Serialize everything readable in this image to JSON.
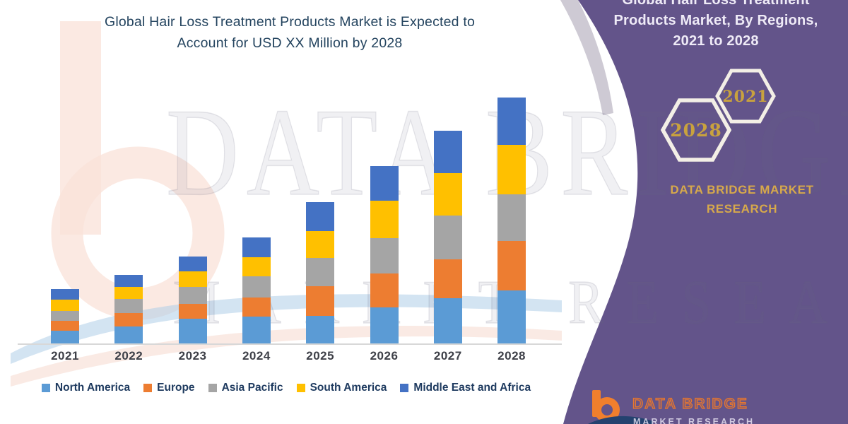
{
  "title": {
    "line1": "Global Hair Loss Treatment Products Market is Expected to",
    "line2": "Account for USD XX Million by 2028"
  },
  "watermark": {
    "line1": "DATA BRIDGE",
    "line2": "MARKET RESEARCH"
  },
  "chart_data": {
    "type": "bar",
    "stacked": true,
    "title": "Global Hair Loss Treatment Products Market is Expected to Account for USD XX Million by 2028",
    "xlabel": "",
    "ylabel": "",
    "y_axis_visible": false,
    "grid": false,
    "legend_position": "bottom",
    "categories": [
      "2021",
      "2022",
      "2023",
      "2024",
      "2025",
      "2026",
      "2027",
      "2028"
    ],
    "series": [
      {
        "name": "North America",
        "color": "#5B9BD5",
        "values": [
          18,
          24,
          35,
          38,
          39,
          51,
          64,
          75
        ]
      },
      {
        "name": "Europe",
        "color": "#ED7D31",
        "values": [
          14,
          19,
          21,
          27,
          42,
          48,
          55,
          70
        ]
      },
      {
        "name": "Asia Pacific",
        "color": "#A5A5A5",
        "values": [
          14,
          20,
          24,
          30,
          40,
          50,
          62,
          66
        ]
      },
      {
        "name": "South America",
        "color": "#FFC000",
        "values": [
          16,
          17,
          22,
          27,
          38,
          53,
          60,
          70
        ]
      },
      {
        "name": "Middle East and Africa",
        "color": "#4472C4",
        "values": [
          15,
          17,
          21,
          28,
          41,
          49,
          60,
          67
        ]
      }
    ]
  },
  "panel": {
    "background_color": "#63548A",
    "title_lines": [
      "Global Hair Loss Treatment",
      "Products Market, By Regions,",
      "2021 to 2028"
    ],
    "hexagons": [
      {
        "label": "2028"
      },
      {
        "label": "2021"
      }
    ],
    "brand_lines": [
      "DATA BRIDGE MARKET",
      "RESEARCH"
    ],
    "footer_logo": {
      "brand": "DATA BRIDGE",
      "sub": "MARKET RESEARCH"
    }
  },
  "colors": {
    "title_text": "#24445F",
    "panel_purple": "#63548A",
    "gold_accent": "#D7A94B",
    "hex_year_gold": "#C9A23E",
    "axis_line": "#D8D8D8",
    "logo_orange": "#E8772E",
    "logo_navy": "#24426F"
  }
}
